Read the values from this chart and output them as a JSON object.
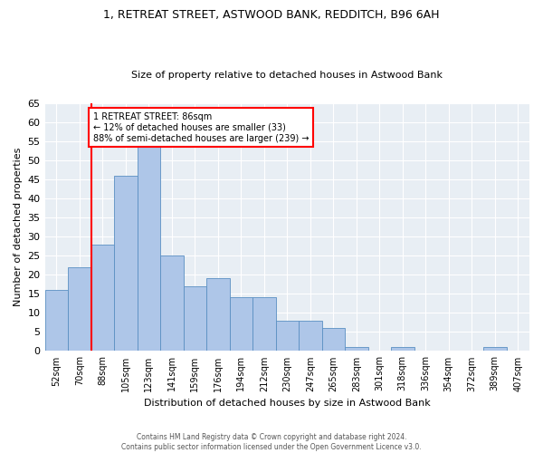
{
  "title1": "1, RETREAT STREET, ASTWOOD BANK, REDDITCH, B96 6AH",
  "title2": "Size of property relative to detached houses in Astwood Bank",
  "xlabel": "Distribution of detached houses by size in Astwood Bank",
  "ylabel": "Number of detached properties",
  "bar_labels": [
    "52sqm",
    "70sqm",
    "88sqm",
    "105sqm",
    "123sqm",
    "141sqm",
    "159sqm",
    "176sqm",
    "194sqm",
    "212sqm",
    "230sqm",
    "247sqm",
    "265sqm",
    "283sqm",
    "301sqm",
    "318sqm",
    "336sqm",
    "354sqm",
    "372sqm",
    "389sqm",
    "407sqm"
  ],
  "bar_values": [
    16,
    22,
    28,
    46,
    54,
    25,
    17,
    19,
    14,
    14,
    8,
    8,
    6,
    1,
    0,
    1,
    0,
    0,
    0,
    1,
    0
  ],
  "bar_color": "#aec6e8",
  "bar_edge_color": "#5a8fc2",
  "annotation_text": "1 RETREAT STREET: 86sqm\n← 12% of detached houses are smaller (33)\n88% of semi-detached houses are larger (239) →",
  "annotation_box_color": "white",
  "annotation_box_edge": "red",
  "vline_color": "red",
  "vline_x": 1.5,
  "ylim": [
    0,
    65
  ],
  "yticks": [
    0,
    5,
    10,
    15,
    20,
    25,
    30,
    35,
    40,
    45,
    50,
    55,
    60,
    65
  ],
  "bg_color": "#e8eef4",
  "footer1": "Contains HM Land Registry data © Crown copyright and database right 2024.",
  "footer2": "Contains public sector information licensed under the Open Government Licence v3.0."
}
